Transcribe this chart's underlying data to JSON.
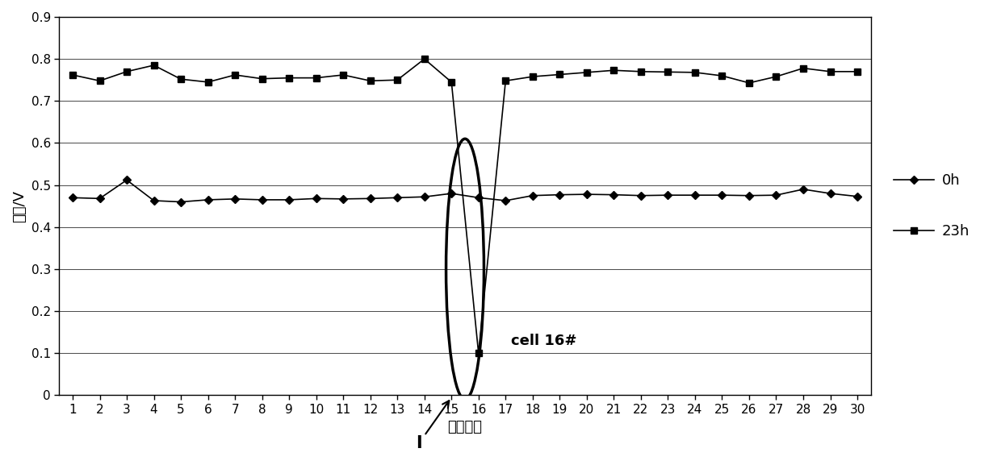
{
  "x": [
    1,
    2,
    3,
    4,
    5,
    6,
    7,
    8,
    9,
    10,
    11,
    12,
    13,
    14,
    15,
    16,
    17,
    18,
    19,
    20,
    21,
    22,
    23,
    24,
    25,
    26,
    27,
    28,
    29,
    30
  ],
  "series_0h": [
    0.47,
    0.468,
    0.512,
    0.463,
    0.46,
    0.465,
    0.467,
    0.465,
    0.465,
    0.468,
    0.467,
    0.468,
    0.47,
    0.472,
    0.48,
    0.47,
    0.463,
    0.475,
    0.477,
    0.478,
    0.477,
    0.475,
    0.476,
    0.476,
    0.476,
    0.475,
    0.476,
    0.49,
    0.48,
    0.473
  ],
  "series_23h": [
    0.762,
    0.748,
    0.77,
    0.785,
    0.752,
    0.745,
    0.762,
    0.753,
    0.755,
    0.755,
    0.762,
    0.748,
    0.75,
    0.8,
    0.745,
    0.1,
    0.748,
    0.758,
    0.763,
    0.768,
    0.773,
    0.77,
    0.769,
    0.768,
    0.76,
    0.743,
    0.758,
    0.778,
    0.77,
    0.77
  ],
  "xlabel": "电芯编号",
  "ylabel": "电压/V",
  "ylim": [
    0,
    0.9
  ],
  "yticks": [
    0,
    0.1,
    0.2,
    0.3,
    0.4,
    0.5,
    0.6,
    0.7,
    0.8,
    0.9
  ],
  "legend_0h": "0h",
  "legend_23h": "23h",
  "annotation_text": "cell 16#",
  "annotation_label": "I",
  "line_color": "#000000",
  "background_color": "#ffffff",
  "label_fontsize": 13,
  "tick_fontsize": 11,
  "legend_fontsize": 13
}
